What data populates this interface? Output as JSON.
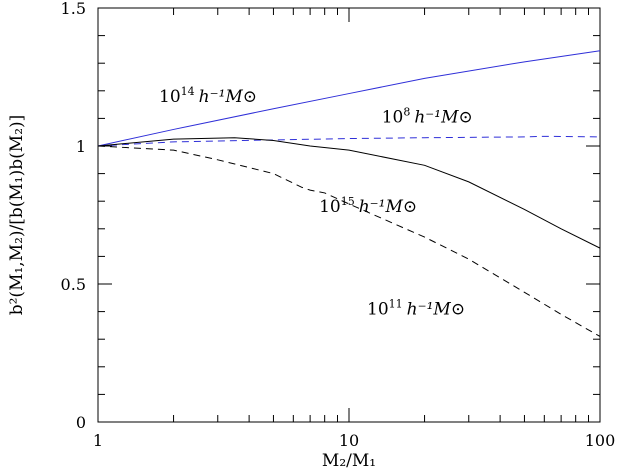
{
  "chart_data": {
    "type": "line",
    "xscale": "log",
    "xlim": [
      1,
      100
    ],
    "ylim": [
      0,
      1.5
    ],
    "grid": false,
    "legend": "inline labels",
    "xlabel": "M₂/M₁",
    "ylabel": "b²(M₁,M₂)/[b(M₁)b(M₂)]",
    "x_major_ticks": [
      {
        "value": 1,
        "label": "1"
      },
      {
        "value": 10,
        "label": "10"
      },
      {
        "value": 100,
        "label": "100"
      }
    ],
    "y_major_ticks": [
      {
        "value": 0,
        "label": "0"
      },
      {
        "value": 0.5,
        "label": "0.5"
      },
      {
        "value": 1,
        "label": "1"
      },
      {
        "value": 1.5,
        "label": "1.5"
      }
    ],
    "y_minor_step": 0.1,
    "series": [
      {
        "name": "10¹⁴ h⁻¹M⊙",
        "color": "#2f2fd8",
        "dash": "solid",
        "x": [
          1,
          2,
          5,
          10,
          20,
          50,
          100
        ],
        "y": [
          1.0,
          1.06,
          1.135,
          1.19,
          1.245,
          1.305,
          1.345
        ]
      },
      {
        "name": "10⁸ h⁻¹M⊙",
        "color": "#2f2fd8",
        "dash": "dashed",
        "x": [
          1,
          2,
          5,
          10,
          20,
          50,
          60,
          100
        ],
        "y": [
          1.0,
          1.015,
          1.022,
          1.027,
          1.03,
          1.033,
          1.035,
          1.033
        ]
      },
      {
        "name": "10¹⁵ h⁻¹M⊙",
        "color": "#000000",
        "dash": "solid",
        "x": [
          1,
          2,
          3.5,
          5,
          7,
          10,
          20,
          30,
          50,
          70,
          100
        ],
        "y": [
          1.0,
          1.025,
          1.03,
          1.02,
          1.0,
          0.985,
          0.93,
          0.87,
          0.77,
          0.7,
          0.63
        ]
      },
      {
        "name": "10¹¹ h⁻¹M⊙",
        "color": "#000000",
        "dash": "dashed",
        "x": [
          1,
          2,
          3,
          5,
          6.5,
          7,
          8,
          10,
          20,
          30,
          50,
          70,
          100
        ],
        "y": [
          1.0,
          0.985,
          0.95,
          0.9,
          0.85,
          0.84,
          0.83,
          0.79,
          0.67,
          0.59,
          0.47,
          0.39,
          0.31
        ]
      }
    ],
    "annotations": [
      {
        "series": 0,
        "mantissa": "10",
        "exponent": "14",
        "unit": "h⁻¹M⊙",
        "at_x": 1.75,
        "at_y": 1.16
      },
      {
        "series": 1,
        "mantissa": "10",
        "exponent": "8",
        "unit": "h⁻¹M⊙",
        "at_x": 13.5,
        "at_y": 1.085
      },
      {
        "series": 2,
        "mantissa": "10",
        "exponent": "15",
        "unit": "h⁻¹M⊙",
        "at_x": 7.6,
        "at_y": 0.76
      },
      {
        "series": 3,
        "mantissa": "10",
        "exponent": "11",
        "unit": "h⁻¹M⊙",
        "at_x": 11.8,
        "at_y": 0.39
      }
    ]
  }
}
